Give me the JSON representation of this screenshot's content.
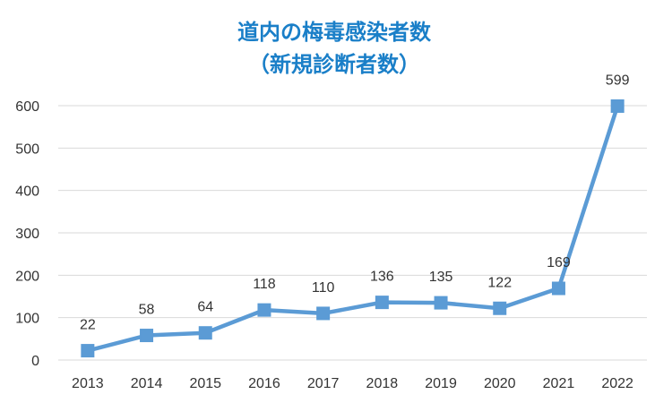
{
  "chart_data": {
    "type": "line",
    "title": "道内の梅毒感染者数",
    "subtitle": "（新規診断者数）",
    "categories": [
      "2013",
      "2014",
      "2015",
      "2016",
      "2017",
      "2018",
      "2019",
      "2020",
      "2021",
      "2022"
    ],
    "series": [
      {
        "values": [
          22,
          58,
          64,
          118,
          110,
          136,
          135,
          122,
          169,
          599
        ],
        "color": "#5b9bd5",
        "marker": "square"
      }
    ],
    "data_labels": [
      "22",
      "58",
      "64",
      "118",
      "110",
      "136",
      "135",
      "122",
      "169",
      "599"
    ],
    "y_ticks": [
      "0",
      "100",
      "200",
      "300",
      "400",
      "500",
      "600"
    ],
    "ylim": [
      0,
      600
    ],
    "grid": true,
    "legend": "none",
    "colors": {
      "title": "#1a7fc8",
      "gridline": "#d9d9d9",
      "text": "#333333"
    }
  }
}
